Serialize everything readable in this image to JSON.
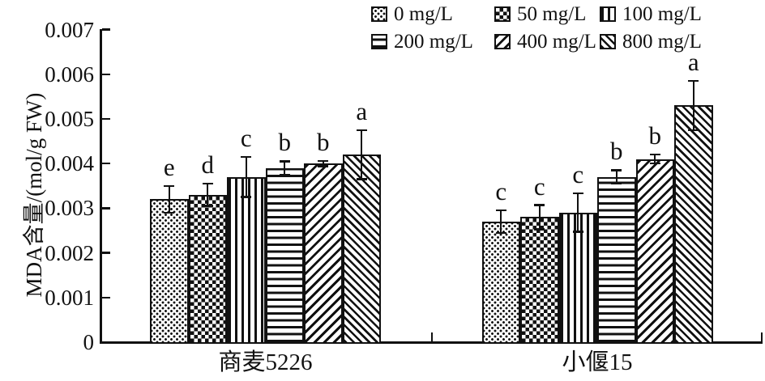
{
  "chart_data": {
    "type": "bar",
    "title": "",
    "ylabel": "MDA含量/(mol/g FW)",
    "xlabel": "",
    "ylim": [
      0,
      0.007
    ],
    "ytick_labels": [
      "0",
      "0.001",
      "0.002",
      "0.003",
      "0.004",
      "0.005",
      "0.006",
      "0.007"
    ],
    "categories": [
      "商麦5226",
      "小偃15"
    ],
    "grid": false,
    "error_bars": true,
    "legend_position": "top-right",
    "series": [
      {
        "name": "0 mg/L",
        "pattern": "dot-lattice",
        "values": [
          0.0032,
          0.0027
        ],
        "errors": [
          0.0003,
          0.00025
        ],
        "sig_letters": [
          "e",
          "c"
        ]
      },
      {
        "name": "50 mg/L",
        "pattern": "checkerboard",
        "values": [
          0.0033,
          0.0028
        ],
        "errors": [
          0.00025,
          0.00027
        ],
        "sig_letters": [
          "d",
          "c"
        ]
      },
      {
        "name": "100 mg/L",
        "pattern": "vertical-stripes",
        "values": [
          0.0037,
          0.0029
        ],
        "errors": [
          0.00045,
          0.00043
        ],
        "sig_letters": [
          "c",
          "c"
        ]
      },
      {
        "name": "200 mg/L",
        "pattern": "horizontal-stripes",
        "values": [
          0.0039,
          0.0037
        ],
        "errors": [
          0.00015,
          0.00015
        ],
        "sig_letters": [
          "b",
          "b"
        ]
      },
      {
        "name": "400 mg/L",
        "pattern": "diagonal-up",
        "values": [
          0.004,
          0.0041
        ],
        "errors": [
          6e-05,
          0.0001
        ],
        "sig_letters": [
          "b",
          "b"
        ]
      },
      {
        "name": "800 mg/L",
        "pattern": "diagonal-down",
        "values": [
          0.0042,
          0.0053
        ],
        "errors": [
          0.00055,
          0.00055
        ],
        "sig_letters": [
          "a",
          "a"
        ]
      }
    ],
    "colors": {
      "ink": "#111111",
      "background": "#ffffff"
    }
  }
}
